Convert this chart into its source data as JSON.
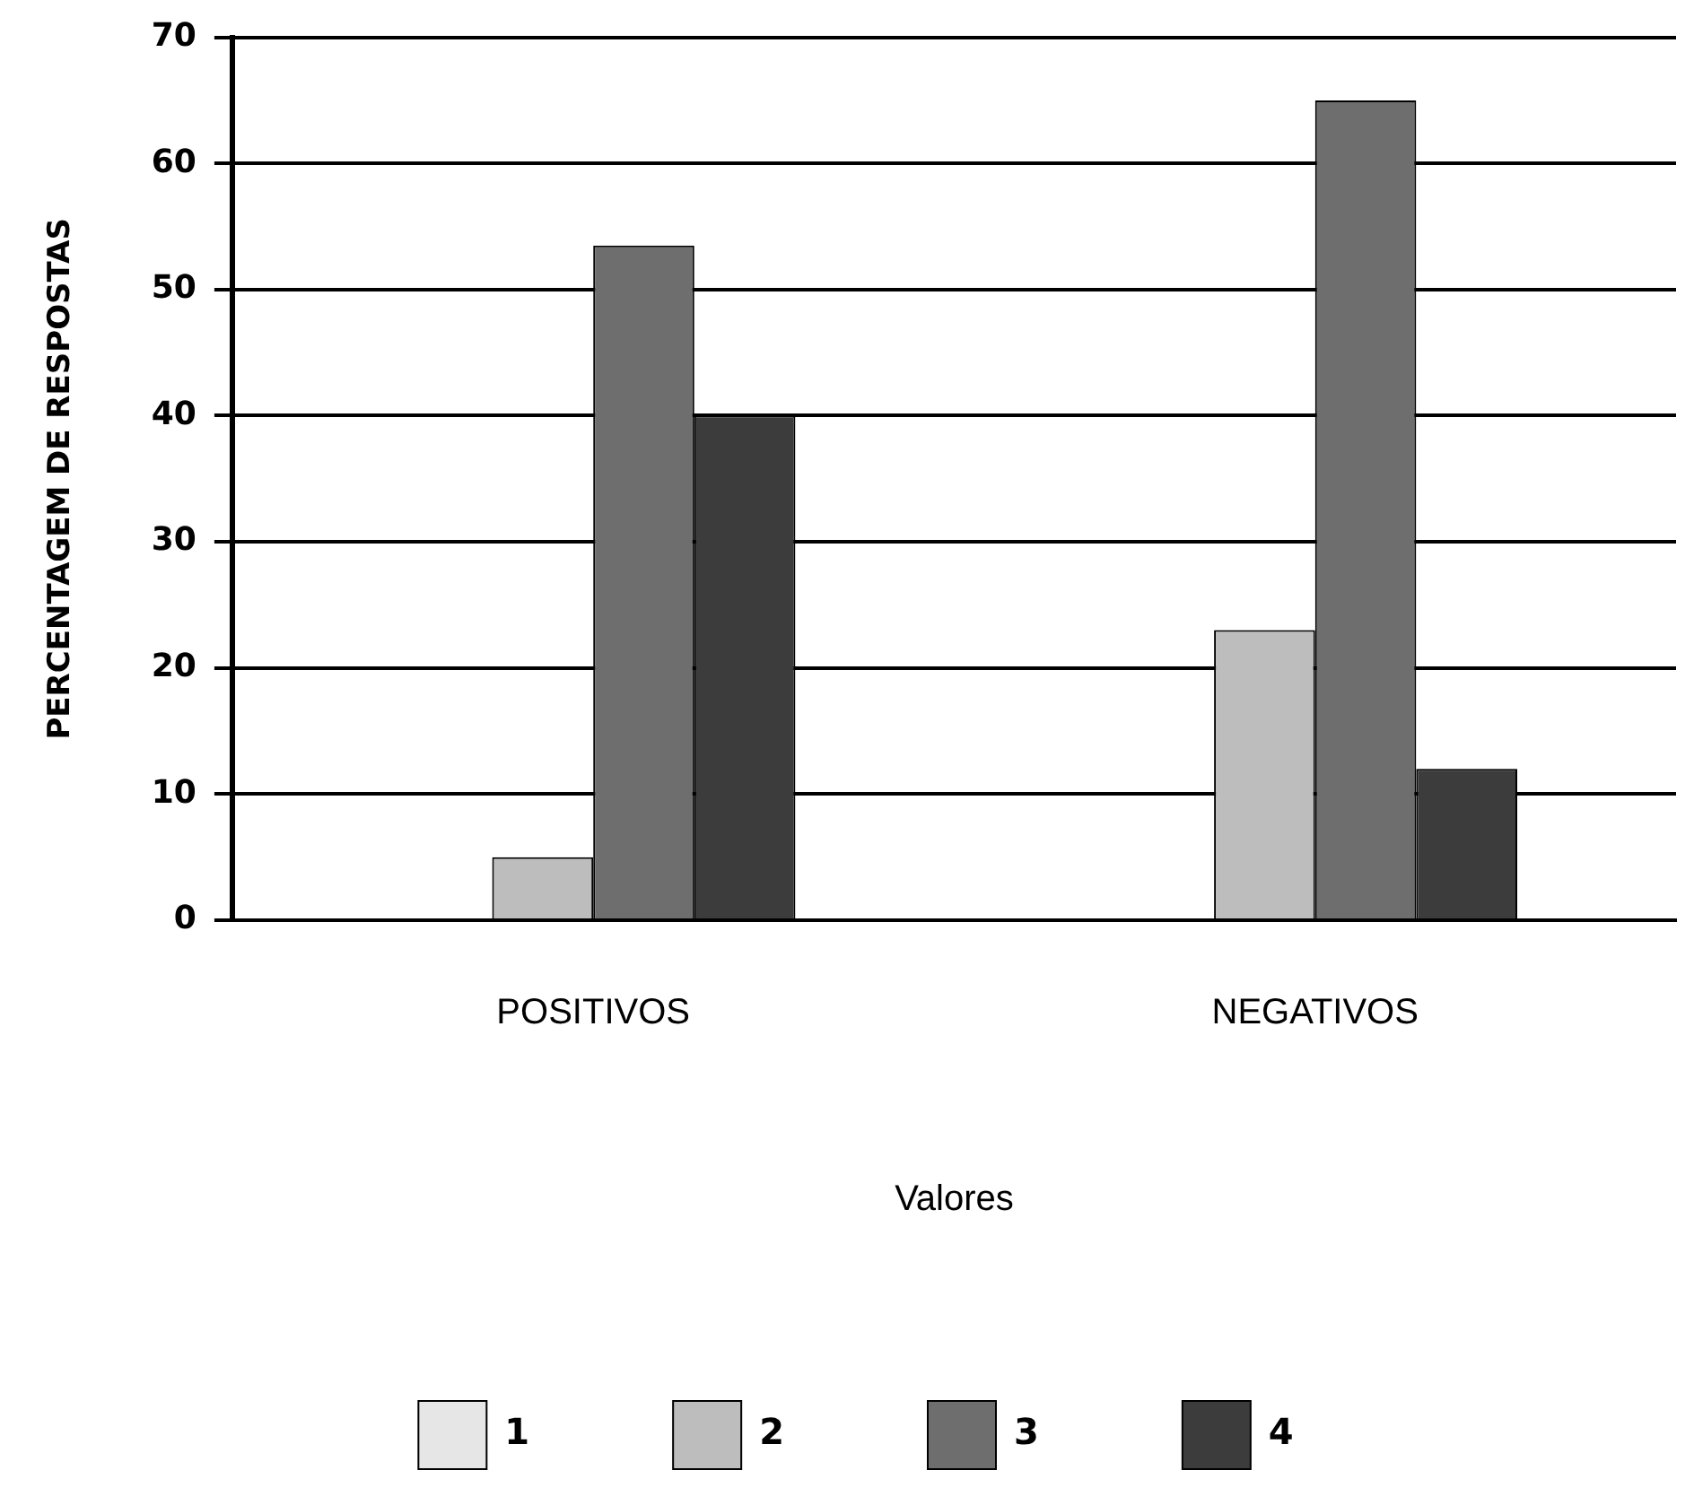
{
  "chart_data": {
    "type": "bar",
    "xlabel": "Valores",
    "ylabel": "PERCENTAGEM DE RESPOSTAS",
    "categories": [
      "POSITIVOS",
      "NEGATIVOS"
    ],
    "series": [
      {
        "name": "1",
        "color": "#e6e6e6",
        "values": [
          0,
          0
        ]
      },
      {
        "name": "2",
        "color": "#bdbdbd",
        "values": [
          5,
          23
        ]
      },
      {
        "name": "3",
        "color": "#6e6e6e",
        "values": [
          53.5,
          65
        ]
      },
      {
        "name": "4",
        "color": "#3c3c3c",
        "values": [
          40,
          12
        ]
      }
    ],
    "ylim": [
      0,
      70
    ],
    "yticks": [
      0,
      10,
      20,
      30,
      40,
      50,
      60,
      70
    ],
    "grid": "y",
    "legend": "bottom"
  }
}
